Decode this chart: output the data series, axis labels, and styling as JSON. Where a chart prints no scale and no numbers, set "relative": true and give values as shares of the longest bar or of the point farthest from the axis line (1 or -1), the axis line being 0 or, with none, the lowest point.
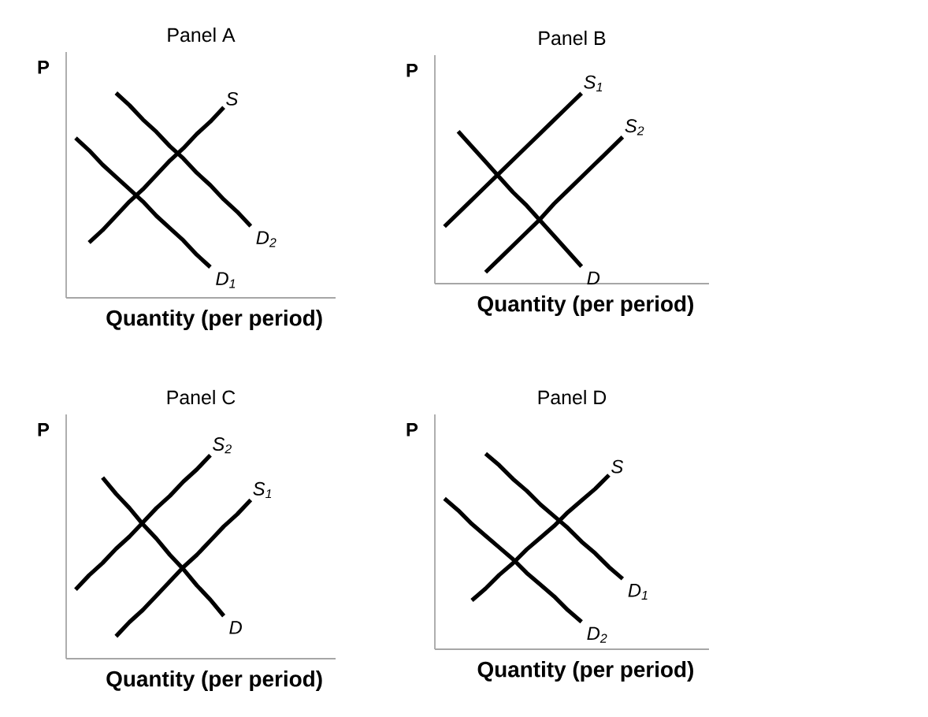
{
  "chart_data": [
    {
      "type": "line",
      "title": "Panel A",
      "xlabel": "Quantity (per period)",
      "ylabel": "P",
      "relative": true,
      "categories": [
        null,
        null,
        null,
        null,
        null,
        null,
        null,
        null,
        null,
        null,
        null,
        null,
        null,
        null,
        null,
        null,
        null,
        null,
        null,
        null
      ],
      "series": [
        {
          "name": "S",
          "color": "#000000",
          "values": [
            null,
            0.27,
            0.33,
            0.4,
            0.47,
            0.53,
            0.6,
            0.67,
            0.73,
            0.8,
            0.86,
            0.93,
            null,
            null,
            null,
            null,
            null,
            null,
            null,
            null
          ]
        },
        {
          "name": "D$_{1}$",
          "color": "#000000",
          "values": [
            0.78,
            0.72,
            0.65,
            0.59,
            0.53,
            0.47,
            0.4,
            0.34,
            0.28,
            0.21,
            0.15,
            null,
            null,
            null,
            null,
            null,
            null,
            null,
            null,
            null
          ]
        },
        {
          "name": "D$_{2}$",
          "color": "#000000",
          "values": [
            null,
            null,
            null,
            1.0,
            0.94,
            0.87,
            0.81,
            0.74,
            0.68,
            0.61,
            0.55,
            0.48,
            0.42,
            0.35,
            null,
            null,
            null,
            null,
            null,
            null
          ]
        }
      ]
    },
    {
      "type": "line",
      "title": "Panel B",
      "xlabel": "Quantity (per period)",
      "ylabel": "P",
      "relative": true,
      "categories": [
        null,
        null,
        null,
        null,
        null,
        null,
        null,
        null,
        null,
        null,
        null,
        null,
        null,
        null,
        null,
        null,
        null,
        null,
        null,
        null
      ],
      "series": [
        {
          "name": "S$_{1}$",
          "color": "#000000",
          "values": [
            0.3,
            0.37,
            0.44,
            0.51,
            0.58,
            0.65,
            0.72,
            0.79,
            0.86,
            0.93,
            1.0,
            null,
            null,
            null,
            null,
            null,
            null,
            null,
            null,
            null
          ]
        },
        {
          "name": "S$_{2}$",
          "color": "#000000",
          "values": [
            null,
            null,
            null,
            0.06,
            0.13,
            0.2,
            0.27,
            0.34,
            0.42,
            0.49,
            0.56,
            0.63,
            0.7,
            0.77,
            null,
            null,
            null,
            null,
            null,
            null
          ]
        },
        {
          "name": "D",
          "color": "#000000",
          "values": [
            null,
            0.8,
            0.72,
            0.64,
            0.56,
            0.48,
            0.41,
            0.33,
            0.25,
            0.17,
            0.09,
            null,
            null,
            null,
            null,
            null,
            null,
            null,
            null,
            null
          ]
        }
      ]
    },
    {
      "type": "line",
      "title": "Panel C",
      "xlabel": "Quantity (per period)",
      "ylabel": "P",
      "relative": true,
      "categories": [
        null,
        null,
        null,
        null,
        null,
        null,
        null,
        null,
        null,
        null,
        null,
        null,
        null,
        null,
        null,
        null,
        null,
        null,
        null,
        null
      ],
      "series": [
        {
          "name": "S$_{2}$",
          "color": "#000000",
          "values": [
            0.34,
            0.41,
            0.47,
            0.54,
            0.6,
            0.67,
            0.74,
            0.8,
            0.87,
            0.93,
            1.0,
            null,
            null,
            null,
            null,
            null,
            null,
            null,
            null,
            null
          ]
        },
        {
          "name": "S$_{1}$",
          "color": "#000000",
          "values": [
            null,
            null,
            null,
            0.11,
            0.18,
            0.24,
            0.31,
            0.38,
            0.45,
            0.51,
            0.58,
            0.65,
            0.71,
            0.78,
            null,
            null,
            null,
            null,
            null,
            null
          ]
        },
        {
          "name": "D",
          "color": "#000000",
          "values": [
            null,
            null,
            0.89,
            0.81,
            0.74,
            0.66,
            0.59,
            0.51,
            0.44,
            0.36,
            0.29,
            0.21,
            null,
            null,
            null,
            null,
            null,
            null,
            null,
            null
          ]
        }
      ]
    },
    {
      "type": "line",
      "title": "Panel D",
      "xlabel": "Quantity (per period)",
      "ylabel": "P",
      "relative": true,
      "categories": [
        null,
        null,
        null,
        null,
        null,
        null,
        null,
        null,
        null,
        null,
        null,
        null,
        null,
        null,
        null,
        null,
        null,
        null,
        null,
        null
      ],
      "series": [
        {
          "name": "S",
          "color": "#000000",
          "values": [
            null,
            null,
            0.25,
            0.31,
            0.38,
            0.44,
            0.51,
            0.57,
            0.63,
            0.7,
            0.76,
            0.82,
            0.89,
            null,
            null,
            null,
            null,
            null,
            null,
            null
          ]
        },
        {
          "name": "D$_{1}$",
          "color": "#000000",
          "values": [
            null,
            null,
            null,
            1.0,
            0.94,
            0.87,
            0.81,
            0.74,
            0.68,
            0.62,
            0.55,
            0.49,
            0.42,
            0.36,
            null,
            null,
            null,
            null,
            null,
            null
          ]
        },
        {
          "name": "D$_{2}$",
          "color": "#000000",
          "values": [
            0.77,
            0.71,
            0.64,
            0.58,
            0.52,
            0.46,
            0.39,
            0.33,
            0.27,
            0.2,
            0.14,
            null,
            null,
            null,
            null,
            null,
            null,
            null,
            null,
            null
          ]
        }
      ]
    }
  ]
}
